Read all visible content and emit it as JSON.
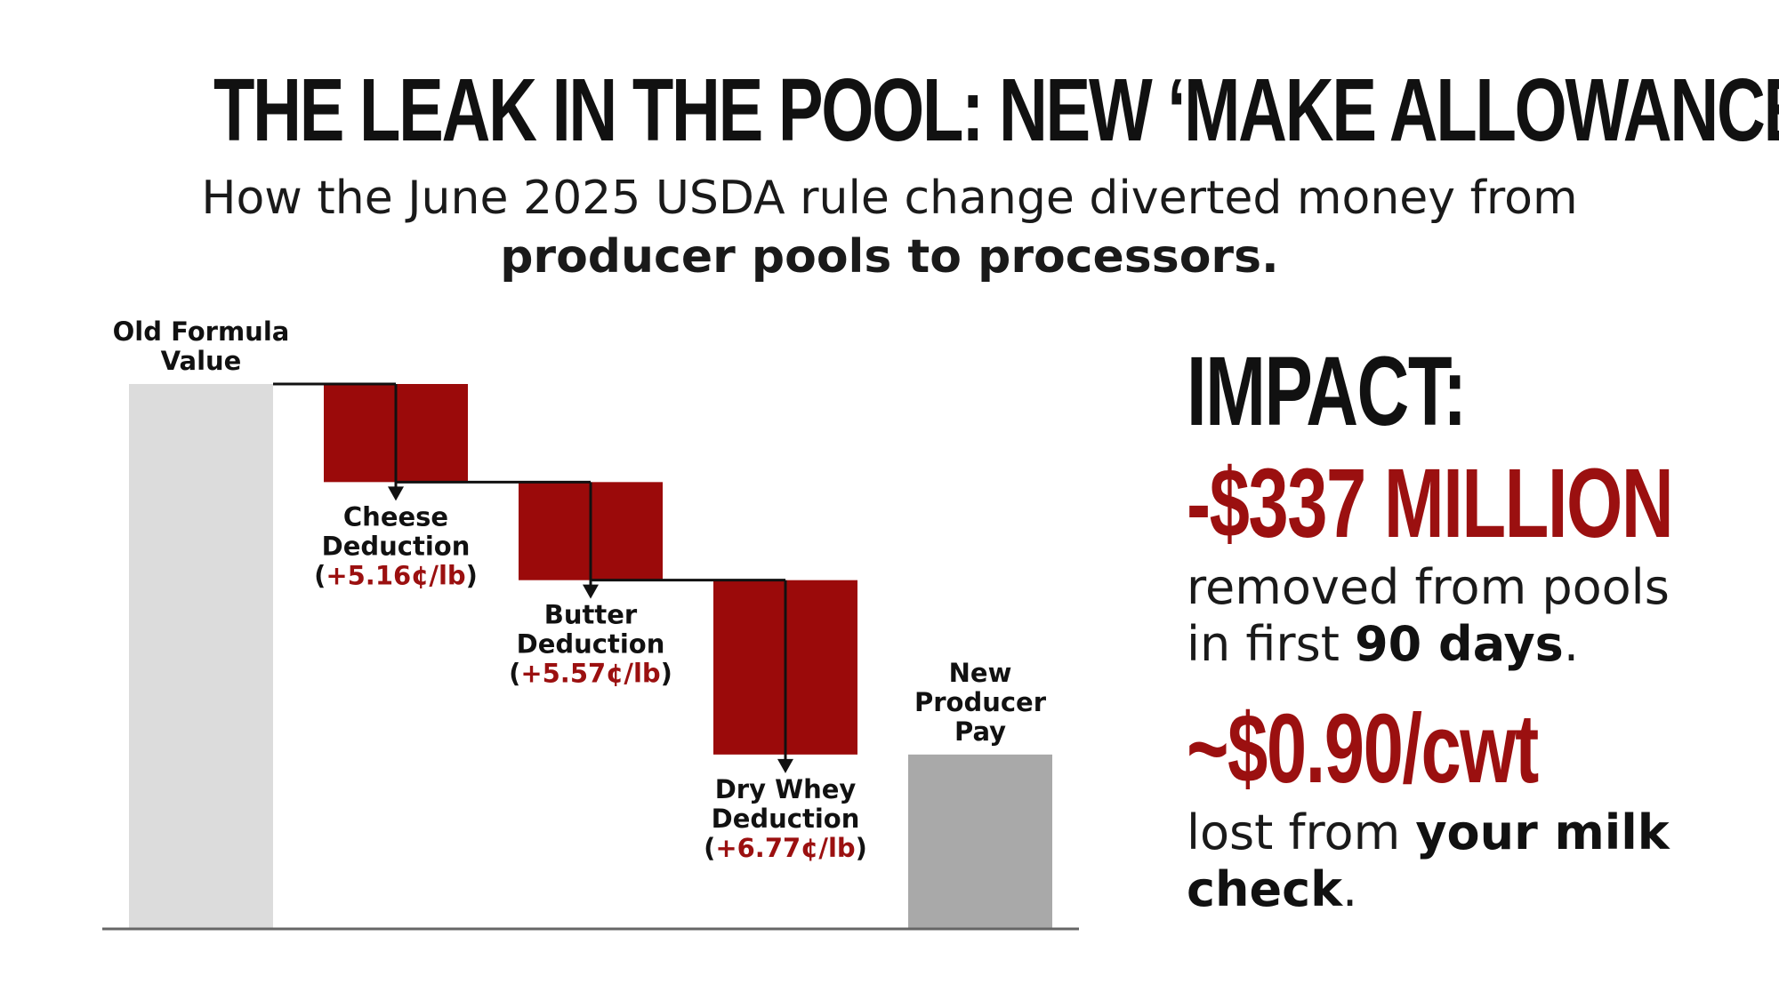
{
  "title": "THE LEAK IN THE POOL: NEW ‘MAKE ALLOWANCES’",
  "subtitle": {
    "line1": "How the June 2025 USDA rule change diverted money from",
    "line2": "producer pools to processors."
  },
  "chart_data": {
    "type": "waterfall",
    "baseline_label": [
      "Old Formula",
      "Value"
    ],
    "baseline_value": 100,
    "steps": [
      {
        "name": "Cheese Deduction",
        "label": [
          "Cheese",
          "Deduction"
        ],
        "change_label": "(+5.16¢/lb)",
        "delta": -18
      },
      {
        "name": "Butter Deduction",
        "label": [
          "Butter",
          "Deduction"
        ],
        "change_label": "(+5.57¢/lb)",
        "delta": -18
      },
      {
        "name": "Dry Whey Deduction",
        "label": [
          "Dry Whey",
          "Deduction"
        ],
        "change_label": "(+6.77¢/lb)",
        "delta": -32
      }
    ],
    "final_label": [
      "New",
      "Producer",
      "Pay"
    ],
    "final_value": 32,
    "ylim": [
      0,
      100
    ],
    "colors": {
      "baseline": "#dcdcdc",
      "step": "#9b0a0a",
      "final": "#a9a9a9",
      "axis": "#666666",
      "connector": "#111111",
      "change_text": "#9b1010"
    }
  },
  "impact": {
    "heading": "IMPACT:",
    "stat1": "-$337 MILLION",
    "stat1_text_a": "removed from pools",
    "stat1_text_b": "in first ",
    "stat1_text_b_bold": "90 days",
    "stat1_text_b_end": ".",
    "stat2": "~$0.90/cwt",
    "stat2_text_a": "lost from ",
    "stat2_text_a_bold": "your milk",
    "stat2_text_b_bold": "check",
    "stat2_text_b_end": "."
  }
}
